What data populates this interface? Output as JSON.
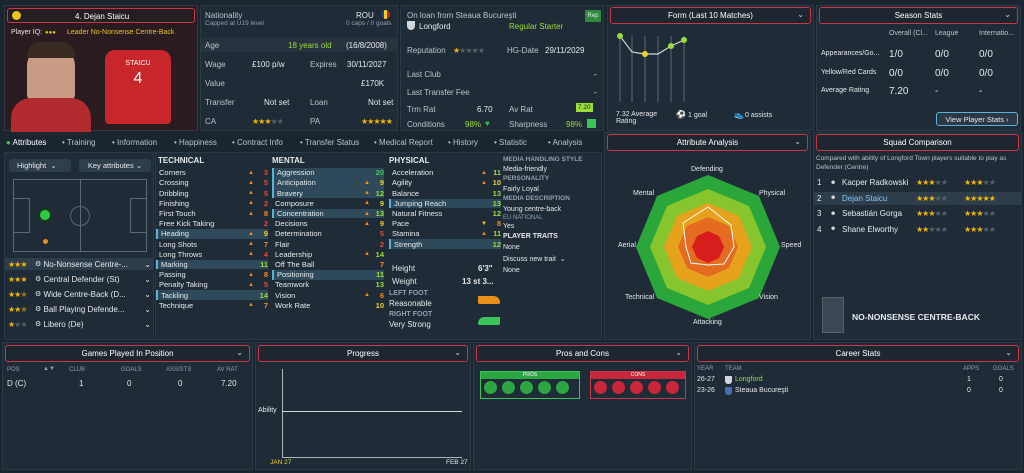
{
  "player": {
    "number_name": "4. Dejan Staicu",
    "iq_label": "Player IQ:",
    "role_label": "Leader No-Nonsense Centre-Back",
    "shirt_name": "STAICU",
    "shirt_number": "4"
  },
  "info": {
    "nationality_label": "Nationality",
    "nationality_value": "ROU",
    "caps": "Capped at U19 level",
    "caps_goals": "0 caps / 0 goals",
    "age_label": "Age",
    "age_value": "18 years old",
    "dob": "(16/8/2008)",
    "wage_label": "Wage",
    "wage_value": "£100 p/w",
    "expires_label": "Expires",
    "expires_value": "30/11/2027",
    "value_label": "Value",
    "value_value": "£170K",
    "transfer_label": "Transfer",
    "transfer_value": "Not set",
    "loan_label": "Loan",
    "loan_value": "Not set",
    "ca_label": "CA",
    "pa_label": "PA"
  },
  "club": {
    "loan_from": "On loan from Steaua Bucureşti",
    "club_name": "Longford",
    "status": "Regular Starter",
    "rep_badge": "Rep",
    "reputation_label": "Reputation",
    "hg_label": "HG-Date",
    "hg_value": "29/11/2029",
    "last_club_label": "Last Club",
    "last_club_value": "-",
    "fee_label": "Last Transfer Fee",
    "fee_value": "-",
    "trm_label": "Trm Rat",
    "trm_value": "6.70",
    "avrat_label": "Av Rat",
    "avrat_value": "7.20",
    "cond_label": "Conditions",
    "cond_value": "98%",
    "sharp_label": "Sharpness",
    "sharp_value": "98%"
  },
  "form": {
    "title": "Form (Last 10 Matches)",
    "avg_value": "7.32 Average",
    "avg_label": "Rating",
    "goals": "1 goal",
    "assists": "0 assists"
  },
  "season": {
    "title": "Season Stats",
    "col1": "Overall (Cl...",
    "col2": "League",
    "col3": "Internatio...",
    "rows": [
      {
        "label": "Appearances/Go...",
        "v1": "1/0",
        "v2": "0/0",
        "v3": "0/0"
      },
      {
        "label": "Yellow/Red Cards",
        "v1": "0/0",
        "v2": "0/0",
        "v3": "0/0"
      },
      {
        "label": "Average Rating",
        "v1": "7.20",
        "v2": "-",
        "v3": "-"
      }
    ],
    "button": "View Player Stats"
  },
  "tabs": [
    "Attributes",
    "Training",
    "Information",
    "Happiness",
    "Contract Info",
    "Transfer Status",
    "Medical Report",
    "History",
    "Statistic",
    "Analysis"
  ],
  "left": {
    "highlight": "Highlight",
    "key_attributes": "Key attributes",
    "positions": [
      {
        "name": "No-Nonsense Centre-..."
      },
      {
        "name": "Central Defender (St)"
      },
      {
        "name": "Wide Centre-Back (D..."
      },
      {
        "name": "Ball Playing Defende..."
      },
      {
        "name": "Libero (De)"
      }
    ]
  },
  "technical": {
    "title": "TECHNICAL",
    "items": [
      {
        "n": "Corners",
        "v": "3",
        "c": "vr",
        "a": "▲"
      },
      {
        "n": "Crossing",
        "v": "5",
        "c": "vr",
        "a": "▲"
      },
      {
        "n": "Dribbling",
        "v": "5",
        "c": "vr",
        "a": "▲"
      },
      {
        "n": "Finishing",
        "v": "2",
        "c": "vr",
        "a": "▲"
      },
      {
        "n": "First Touch",
        "v": "8",
        "c": "vo",
        "a": "▲"
      },
      {
        "n": "Free Kick Taking",
        "v": "2",
        "c": "vr",
        "a": ""
      },
      {
        "n": "Heading",
        "v": "9",
        "c": "vy",
        "a": "▲",
        "h": 1
      },
      {
        "n": "Long Shots",
        "v": "7",
        "c": "vo",
        "a": "▲"
      },
      {
        "n": "Long Throws",
        "v": "4",
        "c": "vr",
        "a": "▲"
      },
      {
        "n": "Marking",
        "v": "11",
        "c": "vg",
        "a": "",
        "h": 1
      },
      {
        "n": "Passing",
        "v": "8",
        "c": "vo",
        "a": "▲"
      },
      {
        "n": "Penalty Taking",
        "v": "5",
        "c": "vr",
        "a": "▲"
      },
      {
        "n": "Tackling",
        "v": "14",
        "c": "vg",
        "a": "",
        "h": 1
      },
      {
        "n": "Technique",
        "v": "7",
        "c": "vo",
        "a": "▲"
      }
    ]
  },
  "mental": {
    "title": "MENTAL",
    "items": [
      {
        "n": "Aggression",
        "v": "20",
        "c": "vgg",
        "a": "",
        "h": 1
      },
      {
        "n": "Anticipation",
        "v": "9",
        "c": "vy",
        "a": "▲",
        "h": 1
      },
      {
        "n": "Bravery",
        "v": "12",
        "c": "vg",
        "a": "▲",
        "h": 1
      },
      {
        "n": "Composure",
        "v": "9",
        "c": "vy",
        "a": "▲"
      },
      {
        "n": "Concentration",
        "v": "13",
        "c": "vg",
        "a": "▲",
        "h": 1
      },
      {
        "n": "Decisions",
        "v": "9",
        "c": "vy",
        "a": "▲"
      },
      {
        "n": "Determination",
        "v": "5",
        "c": "vr",
        "a": ""
      },
      {
        "n": "Flair",
        "v": "2",
        "c": "vr",
        "a": ""
      },
      {
        "n": "Leadership",
        "v": "14",
        "c": "vg",
        "a": "▲"
      },
      {
        "n": "Off The Ball",
        "v": "7",
        "c": "vo",
        "a": ""
      },
      {
        "n": "Positioning",
        "v": "11",
        "c": "vg",
        "a": "",
        "h": 1
      },
      {
        "n": "Teamwork",
        "v": "13",
        "c": "vg",
        "a": ""
      },
      {
        "n": "Vision",
        "v": "6",
        "c": "vo",
        "a": "▲"
      },
      {
        "n": "Work Rate",
        "v": "10",
        "c": "vy",
        "a": ""
      }
    ]
  },
  "physical": {
    "title": "PHYSICAL",
    "items": [
      {
        "n": "Acceleration",
        "v": "11",
        "c": "vg",
        "a": "▲"
      },
      {
        "n": "Agility",
        "v": "10",
        "c": "vy",
        "a": "▲"
      },
      {
        "n": "Balance",
        "v": "13",
        "c": "vg",
        "a": ""
      },
      {
        "n": "Jumping Reach",
        "v": "13",
        "c": "vg",
        "a": "",
        "h": 1
      },
      {
        "n": "Natural Fitness",
        "v": "12",
        "c": "vg",
        "a": ""
      },
      {
        "n": "Pace",
        "v": "8",
        "c": "vo",
        "a": "▼"
      },
      {
        "n": "Stamina",
        "v": "11",
        "c": "vg",
        "a": "▲"
      },
      {
        "n": "Strength",
        "v": "12",
        "c": "vg",
        "a": "",
        "h": 1
      }
    ],
    "height_label": "Height",
    "height_value": "6'3\"",
    "weight_label": "Weight",
    "weight_value": "13 st 3...",
    "left_foot_label": "LEFT FOOT",
    "left_foot_value": "Reasonable",
    "right_foot_label": "RIGHT FOOT",
    "right_foot_value": "Very Strong"
  },
  "media": {
    "style_label": "MEDIA HANDLING STYLE",
    "style_value": "Media-friendly",
    "personality_label": "PERSONALITY",
    "personality_value": "Fairly Loyal",
    "desc_label": "MEDIA DESCRIPTION",
    "desc_value": "Young centre-back",
    "eu_label": "EU NATIONAL",
    "eu_value": "Yes",
    "traits_label": "PLAYER TRAITS",
    "traits_value": "None",
    "discuss": "Discuss new trait",
    "none2": "None"
  },
  "analysis": {
    "title": "Attribute Analysis",
    "labels": [
      "Defending",
      "Physical",
      "Speed",
      "Vision",
      "Attacking",
      "Technical",
      "Aerial",
      "Mental"
    ]
  },
  "squad": {
    "title": "Squad Comparison",
    "desc": "Compared with ability of Longford Town players suitable to play as Defender (Centre)",
    "rows": [
      {
        "i": "1",
        "n": "Kacper Radkowski",
        "s1": 3,
        "s2": 3
      },
      {
        "i": "2",
        "n": "Dejan Staicu",
        "s1": 3,
        "s2": 5
      },
      {
        "i": "3",
        "n": "Sebastián Gorga",
        "s1": 3,
        "s2": 3
      },
      {
        "i": "4",
        "n": "Shane Elworthy",
        "s1": 2,
        "s2": 3
      }
    ],
    "role_title": "NO-NONSENSE CENTRE-BACK"
  },
  "games": {
    "title": "Games Played In Position",
    "headers": [
      "POS",
      "CLUB",
      "GOALS",
      "ASSISTS",
      "AV RAT"
    ],
    "row": [
      "D (C)",
      "1",
      "0",
      "0",
      "7.20"
    ]
  },
  "progress": {
    "title": "Progress",
    "ylabel": "Ability",
    "x0": "JAN 27",
    "x1": "FEB 27"
  },
  "proscons": {
    "title": "Pros and Cons",
    "pros": "PROS",
    "cons": "CONS"
  },
  "career": {
    "title": "Career Stats",
    "headers": [
      "YEAR",
      "TEAM",
      "APPS",
      "GOALS"
    ],
    "rows": [
      {
        "y": "26-27",
        "t": "Longford",
        "a": "1",
        "g": "0"
      },
      {
        "y": "23-26",
        "t": "Steaua Bucureşti",
        "a": "0",
        "g": "0"
      }
    ]
  },
  "colors": {
    "accent": "#c8364a",
    "good": "#3ac35a",
    "star": "#f5b800"
  }
}
